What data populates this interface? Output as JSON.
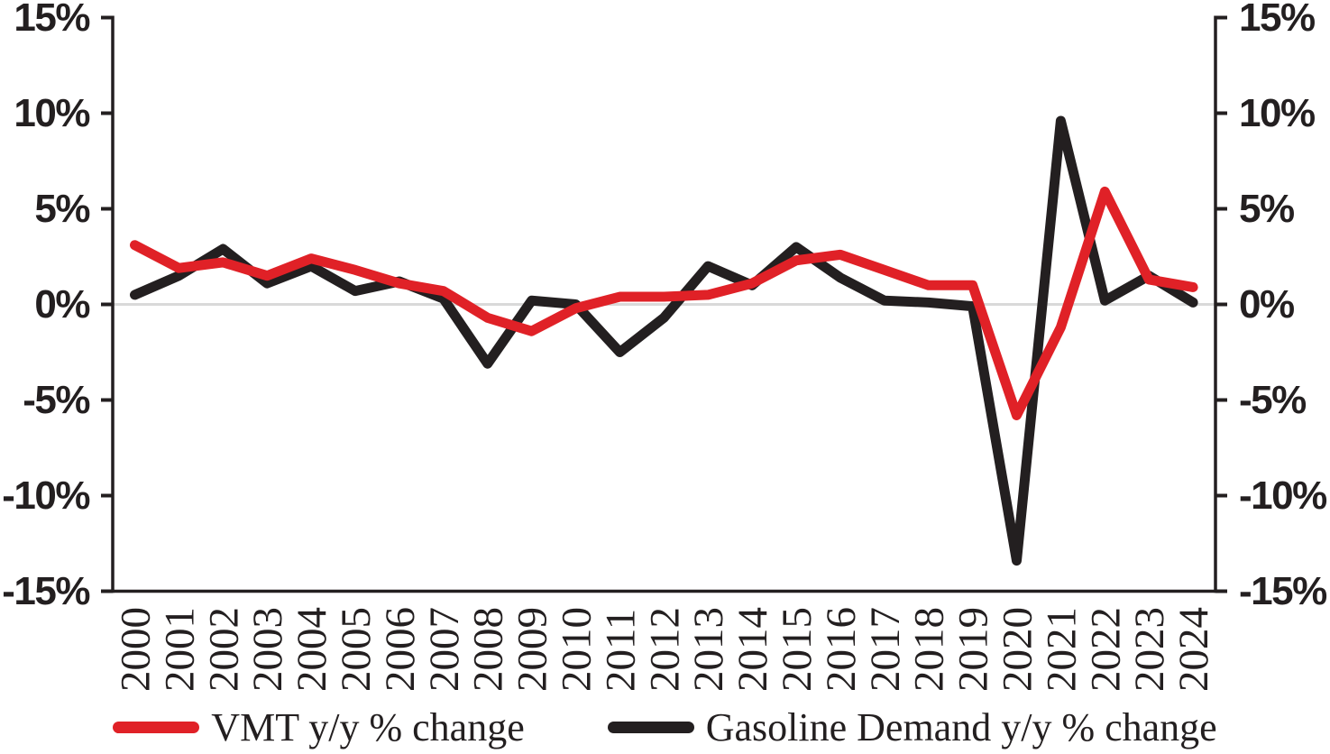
{
  "chart_data": {
    "type": "line",
    "title": "",
    "xlabel": "",
    "ylabel": "",
    "x": [
      "2000",
      "2001",
      "2002",
      "2003",
      "2004",
      "2005",
      "2006",
      "2007",
      "2008",
      "2009",
      "2010",
      "2011",
      "2012",
      "2013",
      "2014",
      "2015",
      "2016",
      "2017",
      "2018",
      "2019",
      "2020",
      "2021",
      "2022",
      "2023",
      "2024"
    ],
    "series": [
      {
        "name": "VMT y/y % change",
        "color": "#e02127",
        "values": [
          3.1,
          1.9,
          2.2,
          1.5,
          2.4,
          1.8,
          1.1,
          0.7,
          -0.7,
          -1.4,
          -0.2,
          0.4,
          0.4,
          0.5,
          1.1,
          2.3,
          2.6,
          1.8,
          1.0,
          1.0,
          -5.8,
          -1.2,
          5.9,
          1.3,
          0.9
        ]
      },
      {
        "name": "Gasoline Demand y/y % change",
        "color": "#231f20",
        "values": [
          0.5,
          1.5,
          2.9,
          1.1,
          2.0,
          0.7,
          1.2,
          0.3,
          -3.1,
          0.2,
          0.0,
          -2.5,
          -0.7,
          2.0,
          1.0,
          3.0,
          1.4,
          0.2,
          0.1,
          -0.1,
          -13.4,
          9.6,
          0.2,
          1.5,
          0.1
        ]
      }
    ],
    "ylim": [
      -15,
      15
    ],
    "y_tick_values": [
      15,
      10,
      5,
      0,
      -5,
      -10,
      -15
    ],
    "y_tick_labels": [
      "15%",
      "10%",
      "5%",
      "0%",
      "-5%",
      "-10%",
      "-15%"
    ],
    "dual_y_axis": true,
    "zero_line_color": "#d9d9d9",
    "grid": "zero-line-only",
    "legend_position": "bottom"
  }
}
